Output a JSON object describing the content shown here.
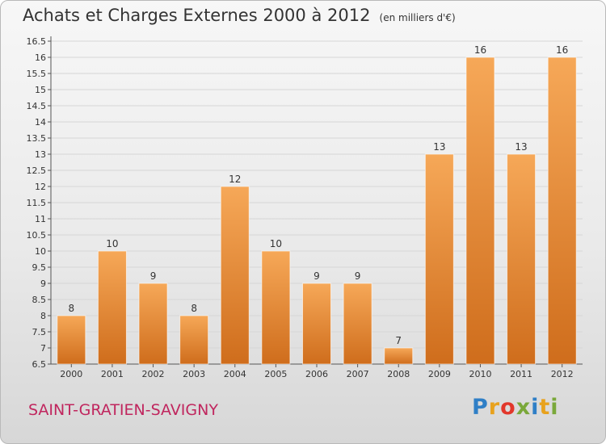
{
  "header": {
    "title": "Achats et Charges Externes 2000 à 2012",
    "unit": "(en milliers d'€)"
  },
  "footer": {
    "city": "SAINT-GRATIEN-SAVIGNY",
    "logo": "Proxiti"
  },
  "colors": {
    "bar_light": "#f6a858",
    "bar_dark": "#cf6d1c",
    "city": "#c0265e"
  },
  "chart_data": {
    "type": "bar",
    "title": "Achats et Charges Externes 2000 à 2012",
    "subtitle": "(en milliers d'€)",
    "xlabel": "",
    "ylabel": "",
    "categories": [
      "2000",
      "2001",
      "2002",
      "2003",
      "2004",
      "2005",
      "2006",
      "2007",
      "2008",
      "2009",
      "2010",
      "2011",
      "2012"
    ],
    "values": [
      8,
      10,
      9,
      8,
      12,
      10,
      9,
      9,
      7,
      13,
      16,
      13,
      16
    ],
    "value_labels": [
      "8",
      "10",
      "9",
      "8",
      "12",
      "10",
      "9",
      "9",
      "7",
      "13",
      "16",
      "13",
      "16"
    ],
    "ylim": [
      6.5,
      16.5
    ],
    "yticks": [
      "6.5",
      "7",
      "7.5",
      "8",
      "8.5",
      "9",
      "9.5",
      "10",
      "10.5",
      "11",
      "11.5",
      "12",
      "12.5",
      "13",
      "13.5",
      "14",
      "14.5",
      "15",
      "15.5",
      "16",
      "16.5"
    ],
    "grid": true,
    "legend": "none"
  }
}
